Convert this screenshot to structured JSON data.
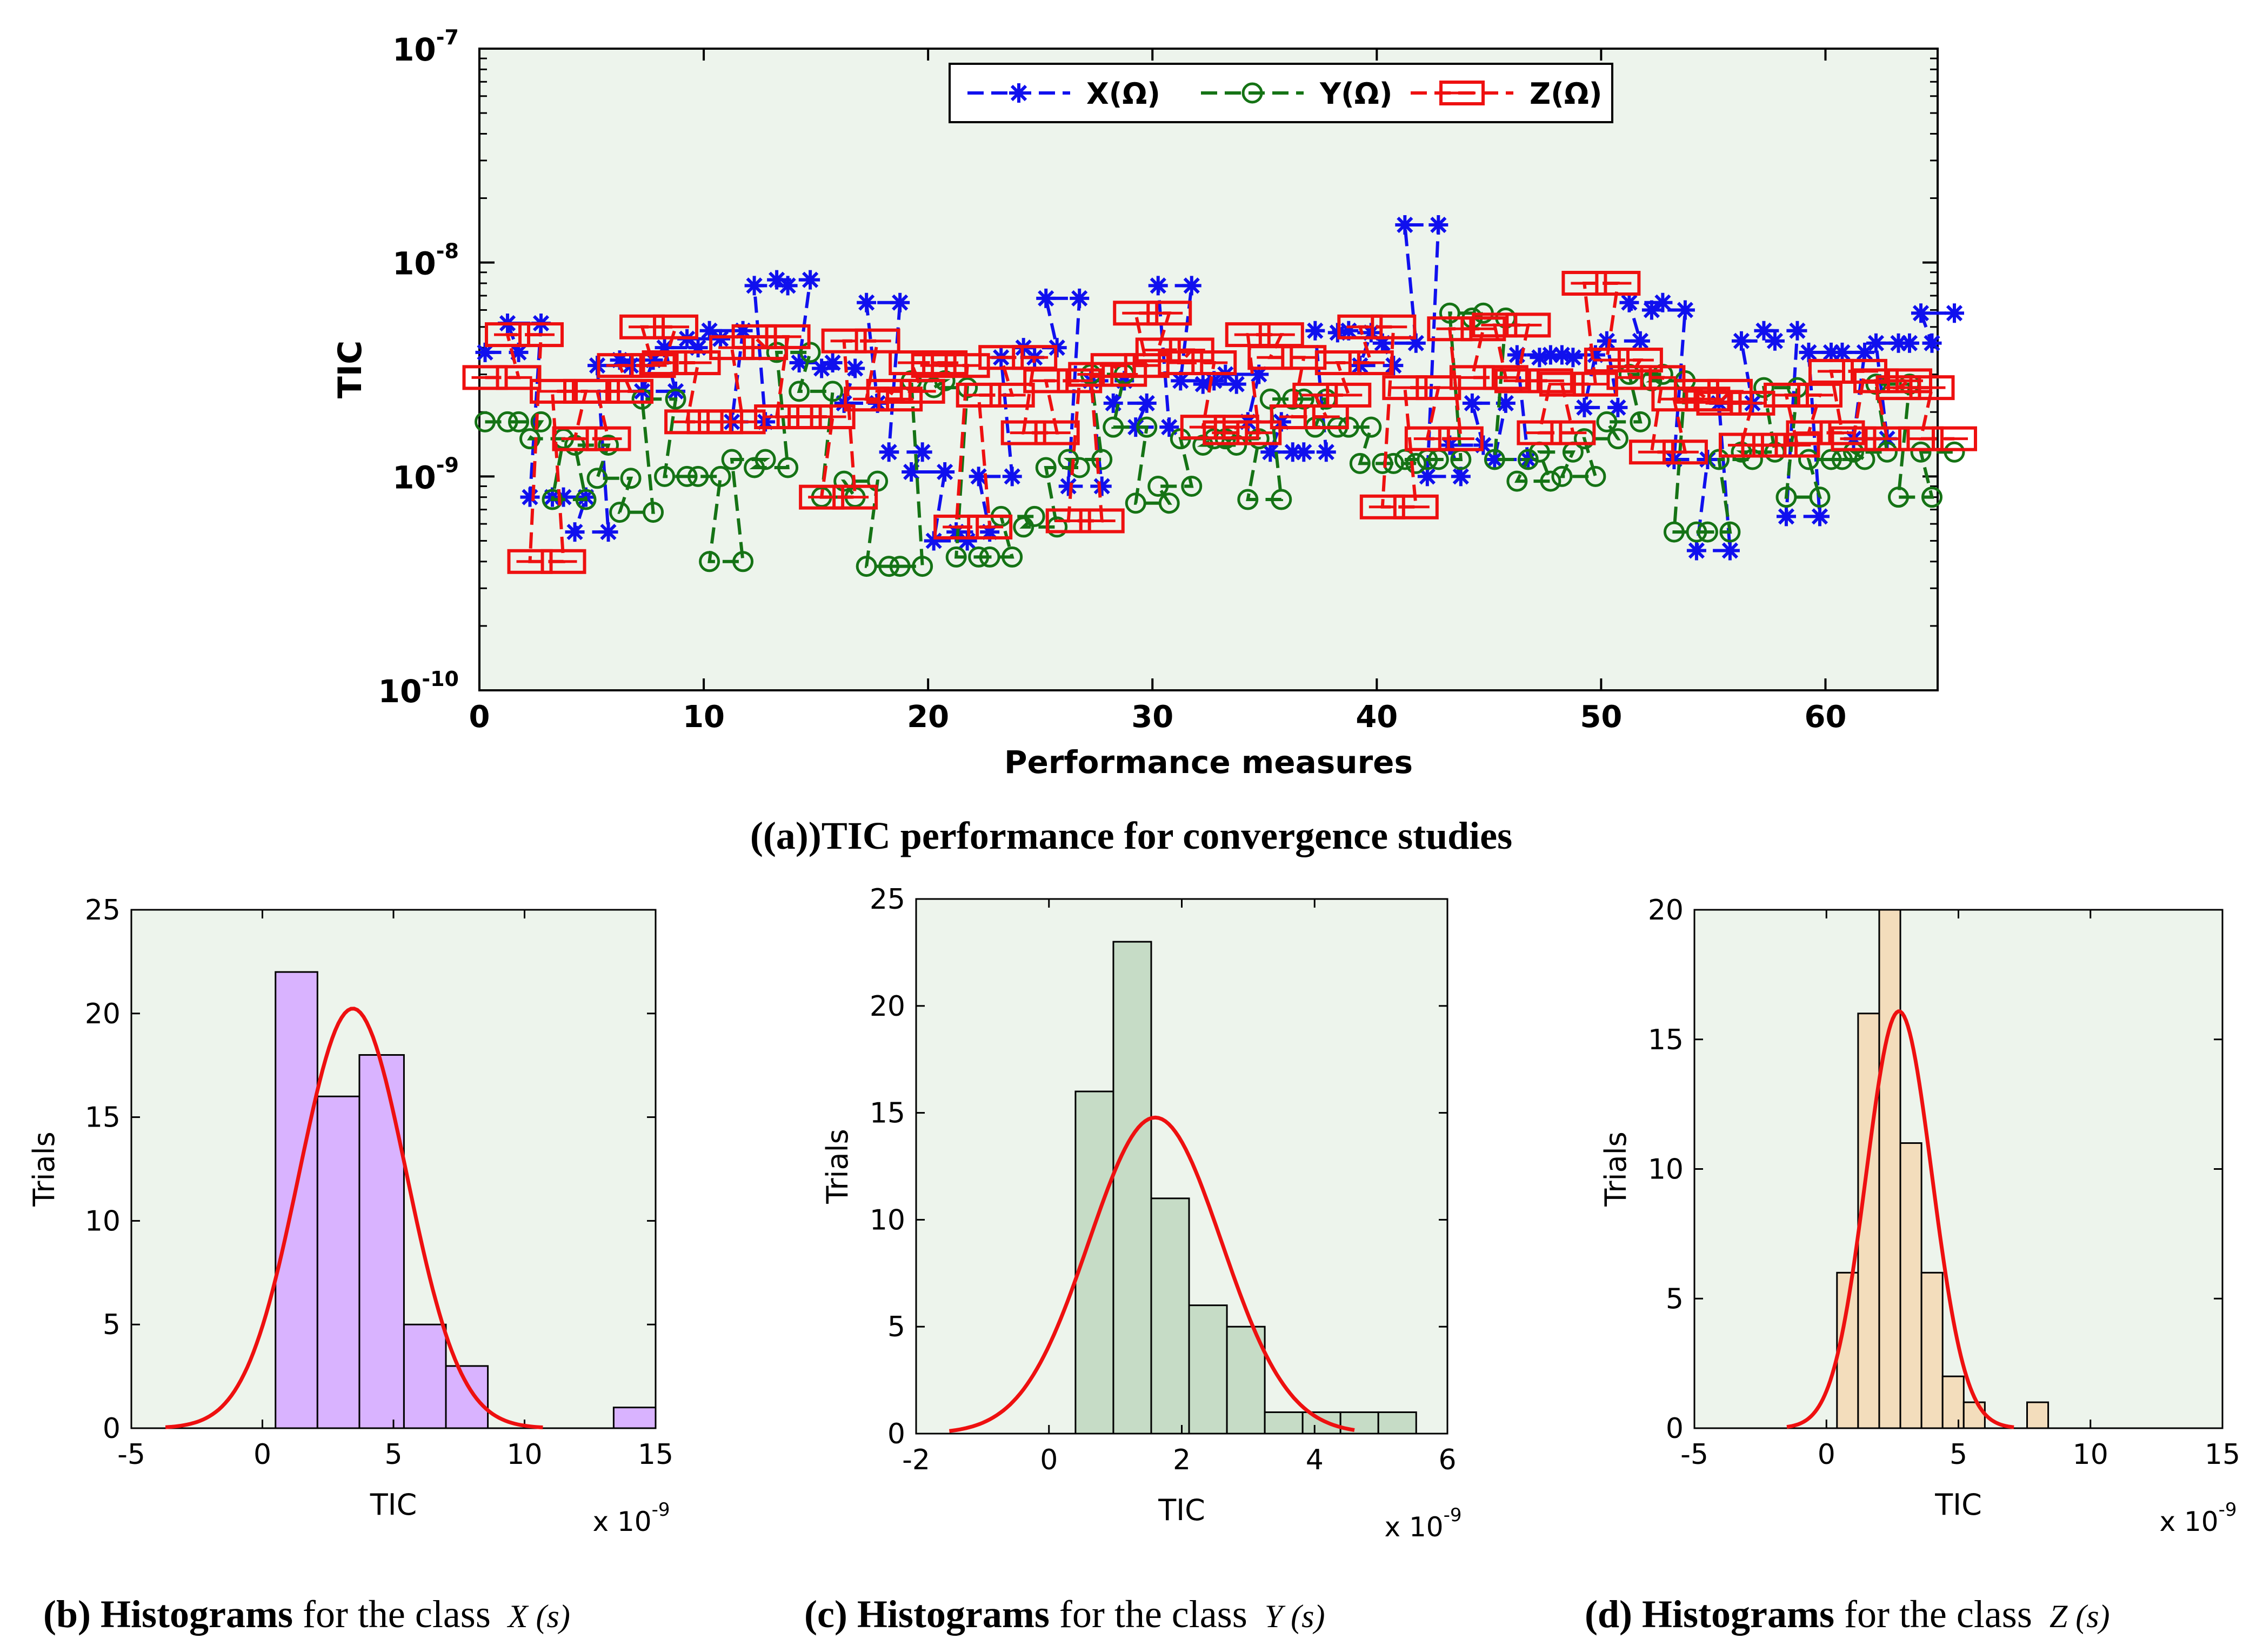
{
  "chart_data": [
    {
      "type": "line",
      "panel": "a",
      "caption": {
        "label": "(a)",
        "text": "TIC performance for convergence studies"
      },
      "ylabel": "TIC",
      "xlabel": "Performance measures",
      "yscale": "log",
      "ylim": [
        1e-10,
        1e-07
      ],
      "xlim": [
        0,
        65
      ],
      "x_ticks": [
        "0",
        "10",
        "20",
        "30",
        "40",
        "50",
        "60"
      ],
      "y_ticks": [
        {
          "base": "10",
          "exp": "-10",
          "value": 1e-10
        },
        {
          "base": "10",
          "exp": "-9",
          "value": 1e-09
        },
        {
          "base": "10",
          "exp": "-8",
          "value": 1e-08
        },
        {
          "base": "10",
          "exp": "-7",
          "value": 1e-07
        }
      ],
      "legend": {
        "placement": "top-center",
        "entries": [
          "X(Ω)",
          "Y(Ω)",
          "Z(Ω)"
        ]
      },
      "series": [
        {
          "name": "X(Ω)",
          "color": "#1010ee",
          "marker": "star",
          "values": [
            3.8e-09,
            5.2e-09,
            8e-10,
            8e-10,
            5.5e-10,
            3.3e-09,
            3.5e-09,
            2.5e-09,
            4e-09,
            4.4e-09,
            4.8e-09,
            1.8e-09,
            7.8e-09,
            8.3e-09,
            3.4e-09,
            3.2e-09,
            2.2e-09,
            6.5e-09,
            1.3e-09,
            1.05e-09,
            5e-10,
            5.5e-10,
            1e-09,
            3.6e-09,
            4e-09,
            6.8e-09,
            9e-10,
            2.8e-09,
            2.2e-09,
            1.7e-09,
            7.8e-09,
            2.8e-09,
            2.7e-09,
            3e-09,
            1.8e-09,
            1.3e-09,
            1.3e-09,
            4.8e-09,
            4.7e-09,
            3.3e-09,
            4.2e-09,
            1.5e-08,
            1e-09,
            1.4e-09,
            2.2e-09,
            1.2e-09,
            3.7e-09,
            3.6e-09,
            3.7e-09,
            2.1e-09,
            4.3e-09,
            6.5e-09,
            6e-09,
            1.2e-09,
            4.5e-10,
            2.2e-09,
            4.3e-09,
            4.8e-09,
            6.5e-10,
            3.8e-09,
            3.8e-09,
            1.5e-09,
            4.2e-09,
            4.2e-09,
            5.8e-09
          ]
        },
        {
          "name": "Y(Ω)",
          "color": "#157315",
          "marker": "circle",
          "values": [
            1.8e-09,
            1.8e-09,
            1.5e-09,
            7.8e-10,
            1.4e-09,
            9.8e-10,
            6.8e-10,
            2.3e-09,
            1e-09,
            1e-09,
            4e-10,
            1.2e-09,
            1.1e-09,
            3.8e-09,
            2.5e-09,
            8e-10,
            9.5e-10,
            3.8e-10,
            3.8e-10,
            2.8e-09,
            2.6e-09,
            4.2e-10,
            4.2e-10,
            6.5e-10,
            5.8e-10,
            1.1e-09,
            1.2e-09,
            3e-09,
            1.7e-09,
            7.5e-10,
            9e-10,
            1.5e-09,
            1.4e-09,
            1.5e-09,
            7.8e-10,
            2.3e-09,
            2.3e-09,
            1.7e-09,
            1.7e-09,
            1.15e-09,
            1.15e-09,
            1.2e-09,
            1.2e-09,
            5.8e-09,
            5.5e-09,
            1.2e-09,
            9.5e-10,
            1.3e-09,
            1e-09,
            1.5e-09,
            1.8e-09,
            3e-09,
            2.8e-09,
            5.5e-10,
            5.5e-10,
            1.2e-09,
            1.3e-09,
            2.6e-09,
            8e-10,
            1.2e-09,
            1.2e-09,
            1.3e-09,
            2.7e-09,
            8e-10,
            1.3e-09
          ]
        },
        {
          "name": "Z(Ω)",
          "color": "#ee1010",
          "marker": "square",
          "values": [
            2.9e-09,
            4.6e-09,
            4e-10,
            2.5e-09,
            1.5e-09,
            2.5e-09,
            3.3e-09,
            5e-09,
            3.4e-09,
            1.8e-09,
            1.8e-09,
            4e-09,
            4.5e-09,
            1.9e-09,
            1.9e-09,
            8e-10,
            4.3e-09,
            2.3e-09,
            2.5e-09,
            3.4e-09,
            3.3e-09,
            5.8e-10,
            2.4e-09,
            3.6e-09,
            1.6e-09,
            2.8e-09,
            6.2e-10,
            3e-09,
            3.3e-09,
            5.8e-09,
            3.9e-09,
            3.4e-09,
            1.7e-09,
            1.6e-09,
            4.6e-09,
            3.6e-09,
            1.9e-09,
            2.4e-09,
            3.4e-09,
            5e-09,
            7.2e-10,
            2.6e-09,
            1.5e-09,
            4.9e-09,
            2.9e-09,
            5.1e-09,
            2.8e-09,
            1.6e-09,
            2.7e-09,
            8e-09,
            3.5e-09,
            2.9e-09,
            1.3e-09,
            2.3e-09,
            2.5e-09,
            2.2e-09,
            1.4e-09,
            1.4e-09,
            2.4e-09,
            1.6e-09,
            3.1e-09,
            1.5e-09,
            2.8e-09,
            2.6e-09,
            1.5e-09
          ]
        }
      ]
    },
    {
      "type": "bar",
      "panel": "b",
      "caption": {
        "label": "(b)",
        "bold": "Histograms",
        "text": "for the class",
        "math": "X (s)"
      },
      "xlabel": "TIC",
      "ylabel": "Trials",
      "x_multiplier": "x 10",
      "x_multiplier_exp": "-9",
      "xlim": [
        -5,
        15
      ],
      "ylim": [
        0,
        25
      ],
      "x_ticks": [
        "-5",
        "0",
        "5",
        "10",
        "15"
      ],
      "y_ticks": [
        "0",
        "5",
        "10",
        "15",
        "20",
        "25"
      ],
      "bar_color": "#d9b3ff",
      "bin_edges": [
        0.5,
        2.1,
        3.7,
        5.4,
        7,
        8.6,
        10.2,
        11.8,
        13.4,
        15
      ],
      "counts": [
        22,
        16,
        18,
        5,
        3,
        0,
        0,
        0,
        1
      ],
      "fit": {
        "type": "normal",
        "mean": 3.45,
        "sd": 2.05,
        "color": "#ee1010",
        "range": [
          -3.7,
          10.7
        ]
      }
    },
    {
      "type": "bar",
      "panel": "c",
      "caption": {
        "label": "(c)",
        "bold": "Histograms",
        "text": "for the class",
        "math": "Y (s)"
      },
      "xlabel": "TIC",
      "ylabel": "Trials",
      "x_multiplier": "x 10",
      "x_multiplier_exp": "-9",
      "xlim": [
        -2,
        6
      ],
      "ylim": [
        0,
        25
      ],
      "x_ticks": [
        "-2",
        "0",
        "2",
        "4",
        "6"
      ],
      "y_ticks": [
        "0",
        "5",
        "10",
        "15",
        "20",
        "25"
      ],
      "bar_color": "#c6dcc6",
      "bin_edges": [
        0.4,
        0.97,
        1.54,
        2.11,
        2.68,
        3.25,
        3.82,
        4.39,
        4.96,
        5.53
      ],
      "counts": [
        16,
        23,
        11,
        6,
        5,
        1,
        1,
        1,
        1
      ],
      "fit": {
        "type": "normal",
        "mean": 1.6,
        "sd": 1.0,
        "color": "#ee1010",
        "range": [
          -1.5,
          4.6
        ]
      }
    },
    {
      "type": "bar",
      "panel": "d",
      "caption": {
        "label": "(d)",
        "bold": "Histograms",
        "text": "for the class",
        "math": "Z (s)"
      },
      "xlabel": "TIC",
      "ylabel": "Trials",
      "x_multiplier": "x 10",
      "x_multiplier_exp": "-9",
      "xlim": [
        -5,
        15
      ],
      "ylim": [
        0,
        20
      ],
      "x_ticks": [
        "-5",
        "0",
        "5",
        "10",
        "15"
      ],
      "y_ticks": [
        "0",
        "5",
        "10",
        "15",
        "20"
      ],
      "bar_color": "#f3ddbc",
      "bin_edges": [
        0.4,
        1.2,
        2,
        2.8,
        3.6,
        4.4,
        5.2,
        6,
        6.8,
        7.6,
        8.4
      ],
      "counts": [
        6,
        16,
        20,
        11,
        6,
        2,
        1,
        0,
        0,
        1
      ],
      "fit": {
        "type": "normal",
        "mean": 2.75,
        "sd": 1.25,
        "color": "#ee1010",
        "range": [
          -1.5,
          7.1
        ]
      }
    }
  ]
}
